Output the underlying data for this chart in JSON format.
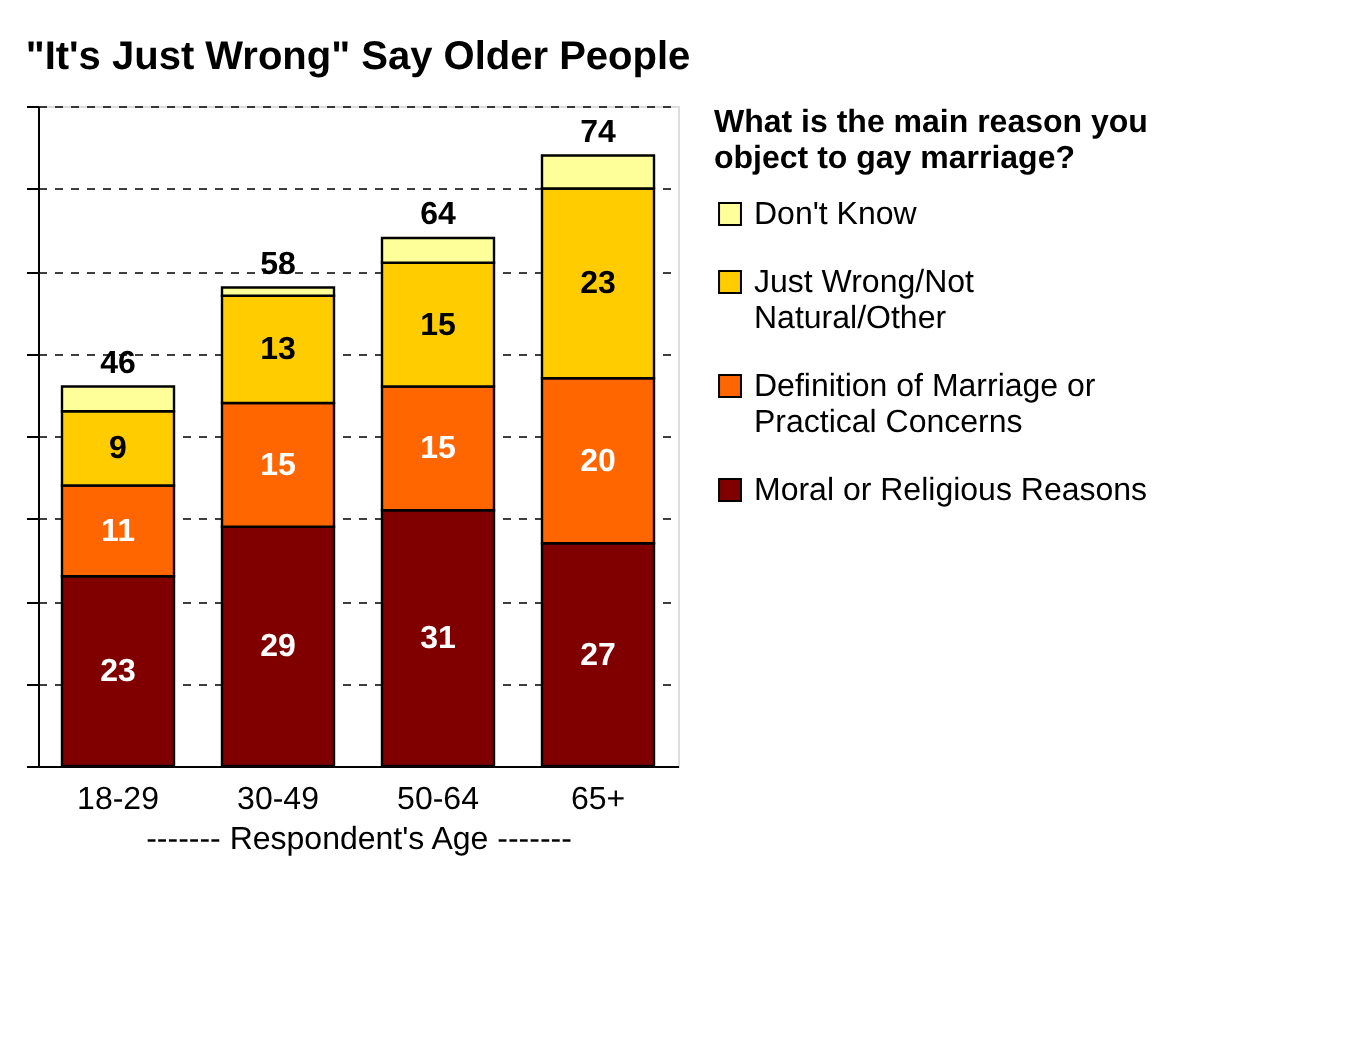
{
  "chart_data": {
    "type": "bar",
    "stacked": true,
    "title": "\"It's Just Wrong\" Say Older People",
    "xlabel": "------- Respondent's Age -------",
    "legend_title": "What is the main reason you object to gay marriage?",
    "categories": [
      "18-29",
      "30-49",
      "50-64",
      "65+"
    ],
    "series": [
      {
        "name": "Moral or Religious Reasons",
        "color": "#800000",
        "values": [
          23,
          29,
          31,
          27
        ],
        "value_labels": [
          "23",
          "29",
          "31",
          "27"
        ]
      },
      {
        "name": "Definition of Marriage or Practical Concerns",
        "color": "#ff6600",
        "values": [
          11,
          15,
          15,
          20
        ],
        "value_labels": [
          "11",
          "15",
          "15",
          "20"
        ]
      },
      {
        "name": "Just Wrong/Not Natural/Other",
        "color": "#ffcc00",
        "values": [
          9,
          13,
          15,
          23
        ],
        "value_labels": [
          "9",
          "13",
          "15",
          "23"
        ]
      },
      {
        "name": "Don't Know",
        "color": "#ffff99",
        "values": [
          3,
          1,
          3,
          4
        ],
        "value_labels": [
          null,
          null,
          null,
          null
        ]
      }
    ],
    "totals": [
      "46",
      "58",
      "64",
      "74"
    ],
    "ylim": [
      0,
      80
    ],
    "tick_labels": "x",
    "grid": "y",
    "legend": "right"
  }
}
